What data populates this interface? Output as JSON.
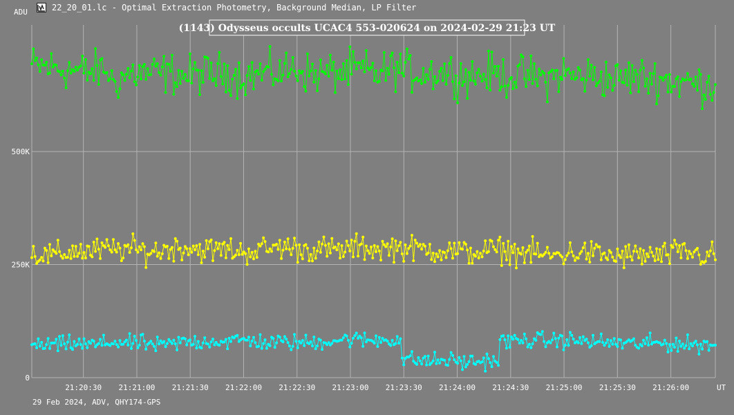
{
  "window": {
    "title": "22_20_01.lc - Optimal Extraction Photometry, Background Median, LP Filter",
    "icon": "lightcurve-app-icon"
  },
  "footer": {
    "text": "29 Feb 2024, ADV, QHY174-GPS"
  },
  "colors": {
    "background": "#7f7f7f",
    "grid": "#b4b4b4",
    "text": "#ffffff",
    "series_1": "#00ff00",
    "series_2": "#ffff00",
    "series_3": "#00ffff"
  },
  "chart_data": {
    "type": "line",
    "title": "(1143) Odysseus occults UCAC4 553-020624 on 2024-02-29  21:23 UT",
    "ylabel": "ADU",
    "xlabel": "UT",
    "ylim": [
      0,
      780000
    ],
    "xlim": [
      "21:20:01",
      "21:26:25"
    ],
    "y_ticks": [
      {
        "value": 0,
        "label": "0"
      },
      {
        "value": 250000,
        "label": "250K"
      },
      {
        "value": 500000,
        "label": "500K"
      }
    ],
    "x_ticks": [
      "21:20:30",
      "21:21:00",
      "21:21:30",
      "21:22:00",
      "21:22:30",
      "21:23:00",
      "21:23:30",
      "21:24:00",
      "21:24:30",
      "21:25:00",
      "21:25:30",
      "21:26:00"
    ],
    "grid": true,
    "markers": "dots",
    "series": [
      {
        "color": "#00ff00",
        "values": [
          690000,
          688000,
          683000,
          680000,
          675000,
          681000,
          655000,
          672000,
          673000,
          672000,
          673000,
          667000,
          671000,
          671000,
          676000,
          665000,
          672000,
          673000,
          677000,
          685000,
          671000,
          672000,
          674000,
          680000,
          678000,
          672000,
          686000,
          676000,
          674000,
          676000,
          674000,
          667000,
          669000,
          673000,
          665000,
          669000,
          665000,
          660000,
          674000,
          665000,
          668000,
          664000,
          658000,
          666000,
          662000,
          662000,
          655000,
          653000,
          648000,
          650000
        ],
        "noise": 22000
      },
      {
        "color": "#ffff00",
        "values": [
          275000,
          270000,
          271000,
          282000,
          278000,
          282000,
          283000,
          285000,
          280000,
          279000,
          287000,
          289000,
          284000,
          281000,
          285000,
          277000,
          282000,
          285000,
          290000,
          285000,
          284000,
          284000,
          280000,
          287000,
          287000,
          285000,
          289000,
          285000,
          284000,
          282000,
          281000,
          276000,
          278000,
          282000,
          282000,
          276000,
          276000,
          269000,
          272000,
          277000,
          276000,
          271000,
          268000,
          270000,
          271000,
          268000,
          275000,
          277000,
          271000,
          270000
        ],
        "noise": 14000
      },
      {
        "color": "#00ffff",
        "values": [
          71000,
          72000,
          72000,
          76000,
          72000,
          74000,
          80000,
          75000,
          77000,
          70000,
          74000,
          79000,
          79000,
          82000,
          79000,
          83000,
          82000,
          76000,
          79000,
          77000,
          77000,
          81000,
          84000,
          85000,
          82000,
          84000,
          85000,
          40000,
          38000,
          37000,
          39000,
          34000,
          36000,
          38000,
          80000,
          82000,
          83000,
          82000,
          83000,
          82000,
          80000,
          78000,
          77000,
          74000,
          76000,
          76000,
          75000,
          73000,
          73000,
          75000
        ],
        "noise": 9000
      }
    ]
  }
}
